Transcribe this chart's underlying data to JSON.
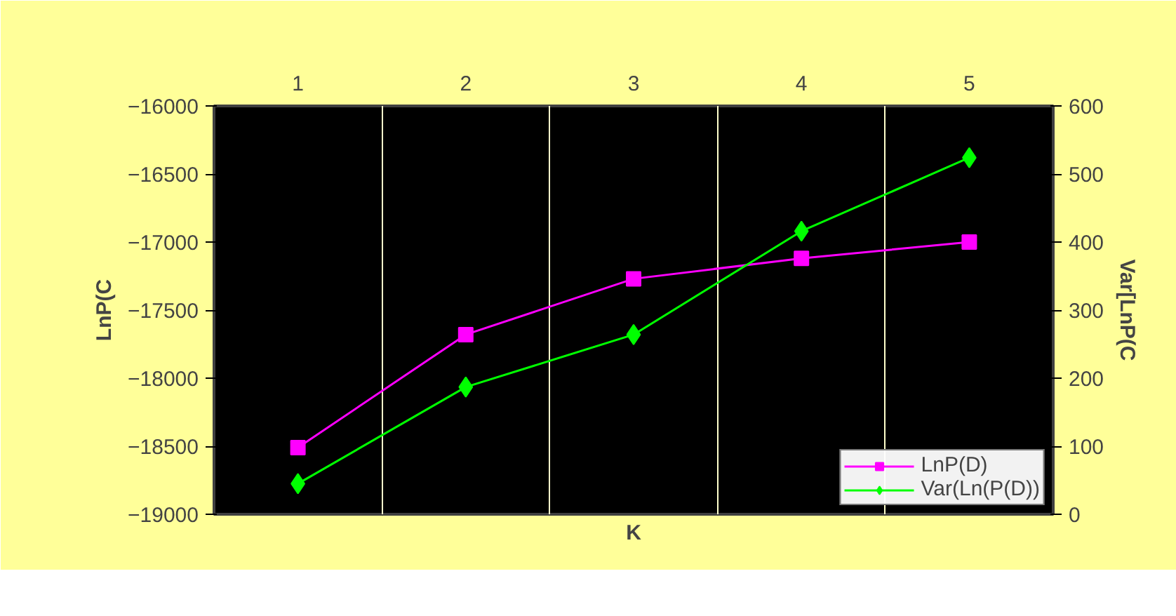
{
  "chart_data": {
    "type": "line",
    "categories": [
      "1",
      "2",
      "3",
      "4",
      "5"
    ],
    "xlabel": "K",
    "ylabel": "LnP(C",
    "y2label": "Var[LnP(C",
    "ylim": [
      -19000,
      -16000
    ],
    "yticks": [
      -19000,
      -18500,
      -18000,
      -17500,
      -17000,
      -16500,
      -16000
    ],
    "y2lim": [
      0,
      600
    ],
    "y2ticks": [
      0,
      100,
      200,
      300,
      400,
      500,
      600
    ],
    "grid": "x",
    "legend": "bottom right",
    "series": [
      {
        "name": "LnP(D)",
        "color": "#ff00ff",
        "marker": "square",
        "values": [
          -18510,
          -17680,
          -17270,
          -17120,
          -17000
        ]
      },
      {
        "name": "Var(Ln(P(D))",
        "color": "#00ff00",
        "marker": "diamond",
        "axis": "y2",
        "values": [
          45,
          187,
          264,
          416,
          524
        ]
      }
    ]
  }
}
